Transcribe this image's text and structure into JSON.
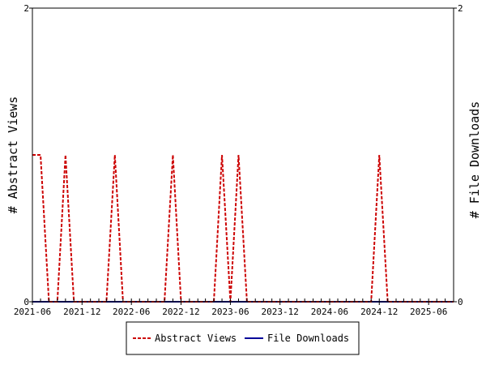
{
  "chart_data": {
    "type": "line",
    "xlabel": "",
    "ylabel": "# Abstract Views",
    "y2label": "# File Downloads",
    "x_ticks": [
      "2021-06",
      "2021-12",
      "2022-06",
      "2022-12",
      "2023-06",
      "2023-12",
      "2024-06",
      "2024-12",
      "2025-06"
    ],
    "xlim": [
      "2021-06-01",
      "2025-09-01"
    ],
    "ylim": [
      0,
      2
    ],
    "y2lim": [
      0,
      2
    ],
    "y_ticks": [
      "0",
      "2"
    ],
    "y2_ticks": [
      "0",
      "2"
    ],
    "legend_position": "bottom-center",
    "months": [
      "2021-06",
      "2021-07",
      "2021-08",
      "2021-09",
      "2021-10",
      "2021-11",
      "2021-12",
      "2022-01",
      "2022-02",
      "2022-03",
      "2022-04",
      "2022-05",
      "2022-06",
      "2022-07",
      "2022-08",
      "2022-09",
      "2022-10",
      "2022-11",
      "2022-12",
      "2023-01",
      "2023-02",
      "2023-03",
      "2023-04",
      "2023-05",
      "2023-06",
      "2023-07",
      "2023-08",
      "2023-09",
      "2023-10",
      "2023-11",
      "2023-12",
      "2024-01",
      "2024-02",
      "2024-03",
      "2024-04",
      "2024-05",
      "2024-06",
      "2024-07",
      "2024-08",
      "2024-09",
      "2024-10",
      "2024-11",
      "2024-12",
      "2025-01",
      "2025-02",
      "2025-03",
      "2025-04",
      "2025-05",
      "2025-06",
      "2025-07",
      "2025-08",
      "2025-09"
    ],
    "series": [
      {
        "name": "Abstract Views",
        "color": "#cc0000",
        "style": "dashed",
        "values": [
          1,
          1,
          0,
          0,
          1,
          0,
          0,
          0,
          0,
          0,
          1,
          0,
          0,
          0,
          0,
          0,
          0,
          1,
          0,
          0,
          0,
          0,
          0,
          1,
          0,
          1,
          0,
          0,
          0,
          0,
          0,
          0,
          0,
          0,
          0,
          0,
          0,
          0,
          0,
          0,
          0,
          0,
          1,
          0,
          0,
          0,
          0,
          0,
          0,
          0,
          0,
          0
        ]
      },
      {
        "name": "File Downloads",
        "color": "#000099",
        "style": "solid",
        "values": [
          0,
          0,
          0,
          0,
          0,
          0,
          0,
          0,
          0,
          0,
          0,
          0,
          0,
          0,
          0,
          0,
          0,
          0,
          0,
          0,
          0,
          0,
          0,
          0,
          0,
          0,
          0,
          0,
          0,
          0,
          0,
          0,
          0,
          0,
          0,
          0,
          0,
          0,
          0,
          0,
          0,
          0,
          0,
          0,
          0,
          0,
          0,
          0,
          0,
          0,
          0,
          0
        ]
      }
    ]
  }
}
